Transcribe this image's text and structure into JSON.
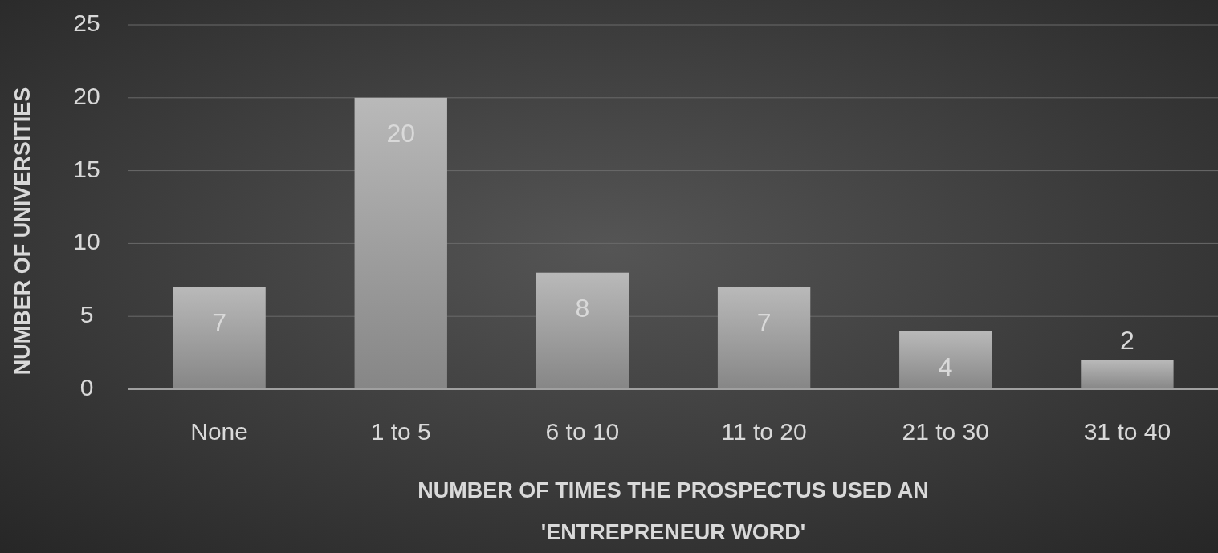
{
  "chart_data": {
    "type": "bar",
    "xlabel": "NUMBER OF TIMES THE PROSPECTUS USED AN 'ENTREPRENEUR WORD'",
    "ylabel": "NUMBER OF UNIVERSITIES",
    "categories": [
      "None",
      "1 to 5",
      "6 to 10",
      "11 to 20",
      "21 to 30",
      "31 to 40"
    ],
    "values": [
      7,
      20,
      8,
      7,
      4,
      2
    ],
    "color": "#a6a6a6",
    "ylim": [
      0,
      25
    ],
    "yticks": [
      0,
      5,
      10,
      15,
      20,
      25
    ],
    "grid": "y",
    "data_labels": true
  }
}
